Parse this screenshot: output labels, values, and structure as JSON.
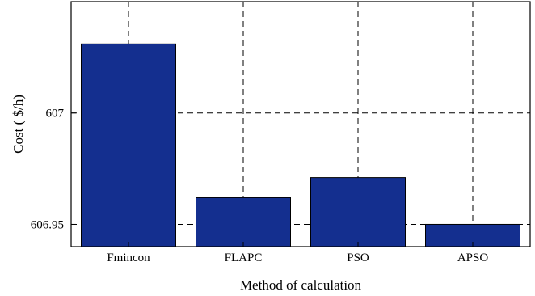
{
  "chart_data": {
    "type": "bar",
    "title": "",
    "xlabel": "Method of calculation",
    "ylabel": "Cost ( $/h)",
    "categories": [
      "Fmincon",
      "FLAPC",
      "PSO",
      "APSO"
    ],
    "values": [
      607.031,
      606.962,
      606.971,
      606.95
    ],
    "ylim": [
      606.94,
      607.05
    ],
    "yticks": [
      606.95,
      607
    ],
    "ytick_labels": [
      "606.95",
      "607"
    ],
    "grid": true,
    "bar_color": "#142f8f",
    "bar_edge_color": "#000000"
  }
}
